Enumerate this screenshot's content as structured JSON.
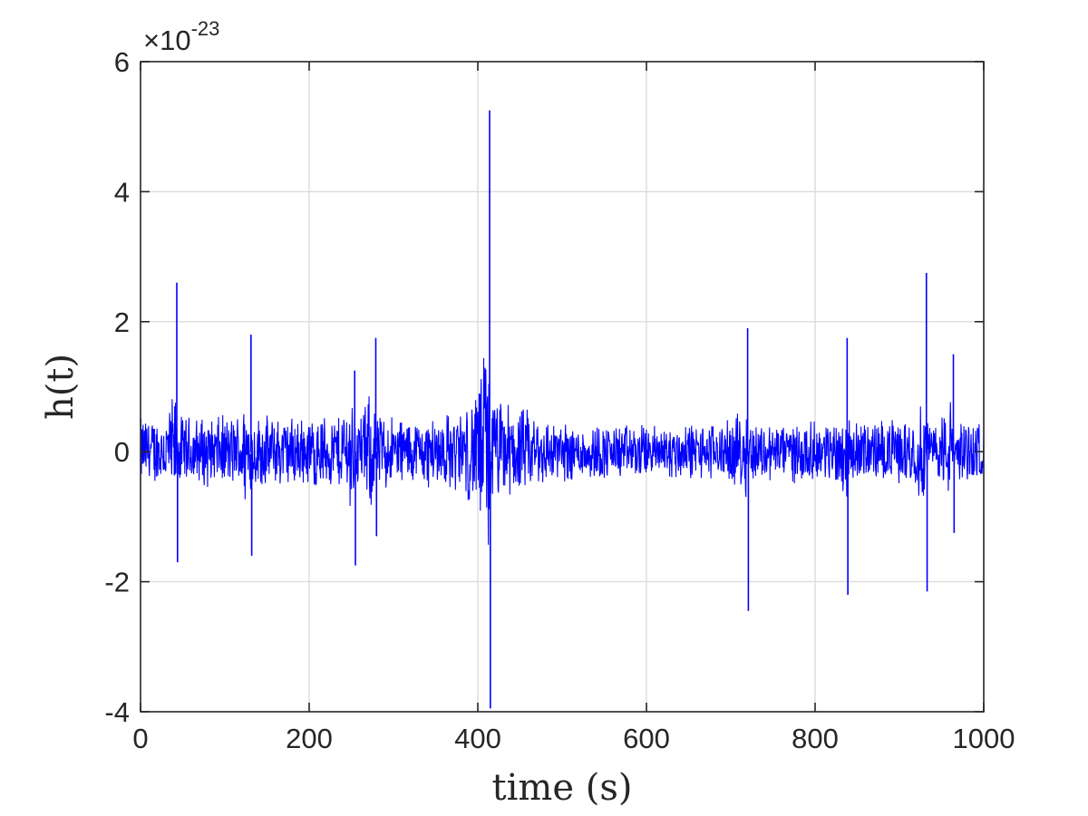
{
  "chart_data": {
    "type": "line",
    "title": "",
    "xlabel": "time (s)",
    "ylabel": "h(t)",
    "y_multiplier": {
      "prefix": "×10",
      "exponent": "-23"
    },
    "xlim": [
      0,
      1000
    ],
    "ylim": [
      -4,
      6
    ],
    "x_ticks": [
      0,
      200,
      400,
      600,
      800,
      1000
    ],
    "y_ticks": [
      -4,
      -2,
      0,
      2,
      4,
      6
    ],
    "x_tick_labels": [
      "0",
      "200",
      "400",
      "600",
      "800",
      "1000"
    ],
    "y_tick_labels": [
      "-4",
      "-2",
      "0",
      "2",
      "4",
      "6"
    ],
    "grid": true,
    "legend": "none",
    "series": [
      {
        "color": "#0000ff",
        "baseline_noise_amplitude": 0.5,
        "sample_interval": 0.5,
        "envelope": [
          {
            "x": 0,
            "upper": 0.6,
            "lower": -0.55
          },
          {
            "x": 100,
            "upper": 0.6,
            "lower": -0.6
          },
          {
            "x": 200,
            "upper": 0.6,
            "lower": -0.6
          },
          {
            "x": 270,
            "upper": 0.7,
            "lower": -0.65
          },
          {
            "x": 330,
            "upper": 0.55,
            "lower": -0.55
          },
          {
            "x": 380,
            "upper": 0.7,
            "lower": -0.7
          },
          {
            "x": 400,
            "upper": 1.0,
            "lower": -1.0
          },
          {
            "x": 500,
            "upper": 0.5,
            "lower": -0.5
          },
          {
            "x": 600,
            "upper": 0.45,
            "lower": -0.45
          },
          {
            "x": 700,
            "upper": 0.5,
            "lower": -0.5
          },
          {
            "x": 800,
            "upper": 0.5,
            "lower": -0.5
          },
          {
            "x": 900,
            "upper": 0.55,
            "lower": -0.5
          },
          {
            "x": 1000,
            "upper": 0.55,
            "lower": -0.5
          }
        ],
        "events": [
          {
            "x": 43,
            "peak": 2.6,
            "trough": -1.7
          },
          {
            "x": 131,
            "peak": 1.8,
            "trough": -1.6
          },
          {
            "x": 254,
            "peak": 1.25,
            "trough": -1.75
          },
          {
            "x": 279,
            "peak": 1.75,
            "trough": -1.3
          },
          {
            "x": 414,
            "peak": 5.25,
            "trough": -3.95
          },
          {
            "x": 720,
            "peak": 1.9,
            "trough": -2.45
          },
          {
            "x": 838,
            "peak": 1.75,
            "trough": -2.2
          },
          {
            "x": 932,
            "peak": 2.75,
            "trough": -2.15
          },
          {
            "x": 964,
            "peak": 1.5,
            "trough": -1.25
          }
        ]
      }
    ]
  }
}
